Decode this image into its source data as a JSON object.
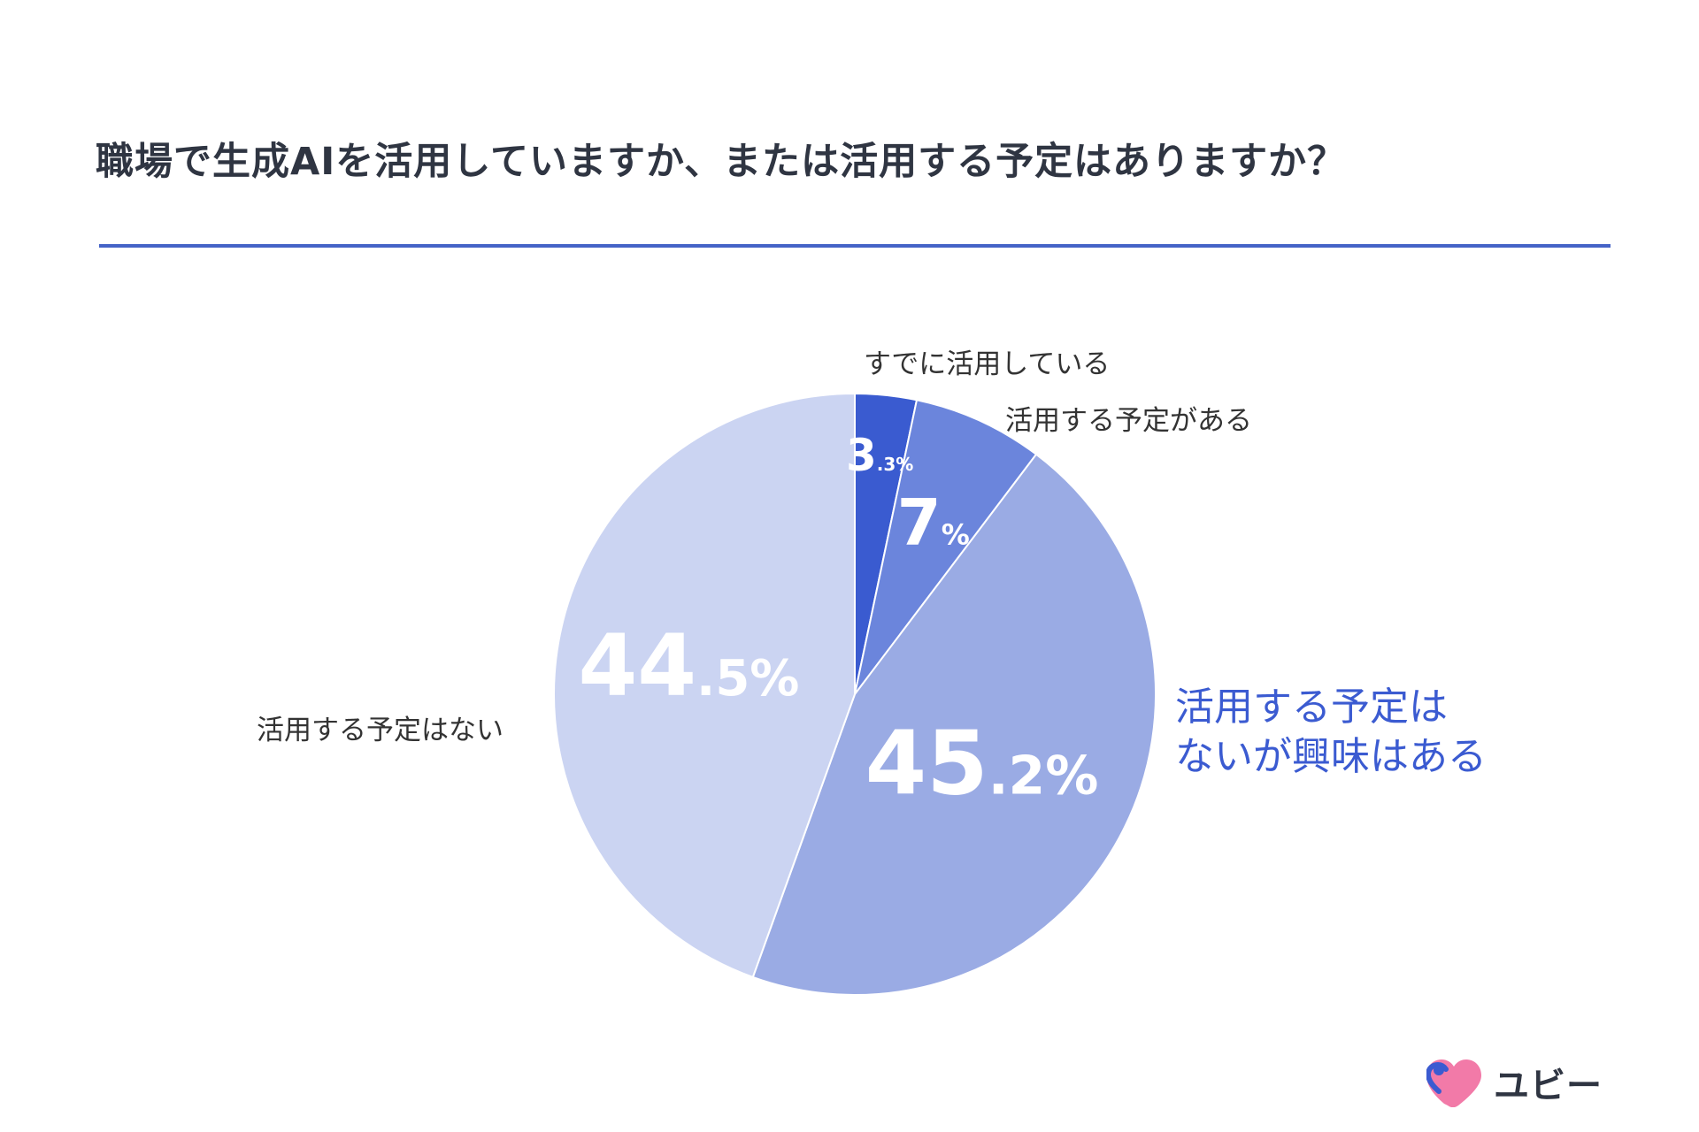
{
  "title": "職場で生成AIを活用していますか、または活用する予定はありますか？",
  "brand": {
    "name": "ユビー"
  },
  "chart_data": {
    "type": "pie",
    "title": "職場で生成AIを活用していますか、または活用する予定はありますか？",
    "slices": [
      {
        "label": "すでに活用している",
        "value": 3.3,
        "value_int": "3",
        "value_dec": ".3%",
        "color": "#3a5bd0"
      },
      {
        "label": "活用する予定がある",
        "value": 7,
        "value_int": "7",
        "value_dec": "%",
        "color": "#6b85dc"
      },
      {
        "label_line1": "活用する予定は",
        "label_line2": "ないが興味はある",
        "value": 45.2,
        "value_int": "45",
        "value_dec": ".2%",
        "color": "#9aabe4"
      },
      {
        "label": "活用する予定はない",
        "value": 44.5,
        "value_int": "44",
        "value_dec": ".5%",
        "color": "#cbd4f2"
      }
    ]
  }
}
